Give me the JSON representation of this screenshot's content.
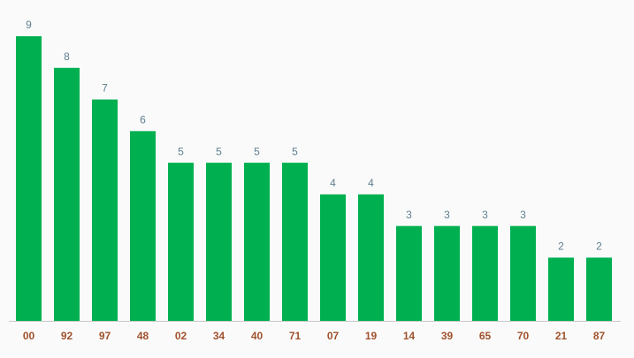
{
  "chart_data": {
    "type": "bar",
    "categories": [
      "00",
      "92",
      "97",
      "48",
      "02",
      "34",
      "40",
      "71",
      "07",
      "19",
      "14",
      "39",
      "65",
      "70",
      "21",
      "87"
    ],
    "values": [
      9,
      8,
      7,
      6,
      5,
      5,
      5,
      5,
      4,
      4,
      3,
      3,
      3,
      3,
      2,
      2
    ],
    "color": "#00b050"
  }
}
